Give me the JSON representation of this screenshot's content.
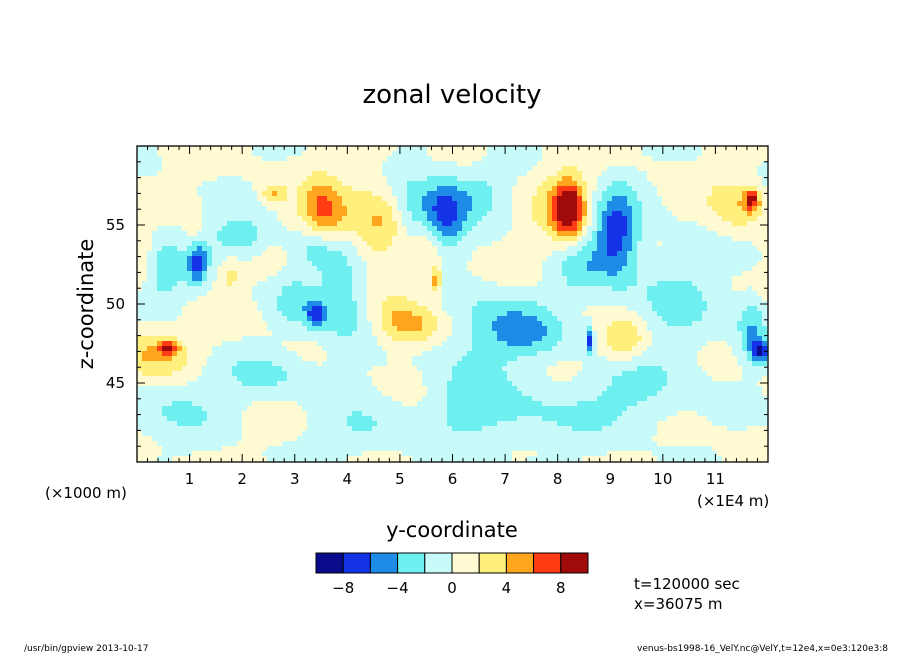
{
  "chart_data": {
    "type": "heatmap",
    "title": "zonal velocity",
    "xlabel": "y-coordinate",
    "ylabel": "z-coordinate",
    "x_scale_note": "(×1E4 m)",
    "y_scale_note": "(×1000 m)",
    "x_ticks": [
      {
        "value": 1,
        "label": "1"
      },
      {
        "value": 2,
        "label": "2"
      },
      {
        "value": 3,
        "label": "3"
      },
      {
        "value": 4,
        "label": "4"
      },
      {
        "value": 5,
        "label": "5"
      },
      {
        "value": 6,
        "label": "6"
      },
      {
        "value": 7,
        "label": "7"
      },
      {
        "value": 8,
        "label": "8"
      },
      {
        "value": 9,
        "label": "9"
      },
      {
        "value": 10,
        "label": "10"
      },
      {
        "value": 11,
        "label": "11"
      }
    ],
    "y_ticks": [
      {
        "value": 45,
        "label": "45"
      },
      {
        "value": 50,
        "label": "50"
      },
      {
        "value": 55,
        "label": "55"
      }
    ],
    "xlim": [
      0,
      12
    ],
    "ylim": [
      40,
      60
    ],
    "colorbar": {
      "levels": [
        -10,
        -8,
        -6,
        -4,
        -2,
        0,
        2,
        4,
        6,
        8,
        10
      ],
      "colors": [
        "#0a0a8c",
        "#1432e6",
        "#1e8ce6",
        "#6ef0f0",
        "#c8fafa",
        "#fffad2",
        "#fff07d",
        "#ffa51e",
        "#ff3c14",
        "#a00a0a"
      ],
      "tick_values": [
        -8,
        -4,
        0,
        4,
        8
      ],
      "tick_labels": [
        "−8",
        "−4",
        "0",
        "4",
        "8"
      ]
    },
    "features": [
      {
        "y": 0.3,
        "z": 46.9,
        "value": 4,
        "sy": 0.5,
        "sz": 1.2
      },
      {
        "y": 0.6,
        "z": 47.2,
        "value": 7,
        "sy": 0.12,
        "sz": 0.3
      },
      {
        "y": 0.5,
        "z": 52.0,
        "value": -3,
        "sy": 0.35,
        "sz": 1.8
      },
      {
        "y": 1.15,
        "z": 52.7,
        "value": -7,
        "sy": 0.13,
        "sz": 1.0
      },
      {
        "y": 1.1,
        "z": 54.0,
        "value": 2,
        "sy": 0.12,
        "sz": 1.2
      },
      {
        "y": 1.95,
        "z": 54.3,
        "value": -4,
        "sy": 0.4,
        "sz": 0.9
      },
      {
        "y": 1.8,
        "z": 51.8,
        "value": 2.5,
        "sy": 0.12,
        "sz": 0.7
      },
      {
        "y": 0.1,
        "z": 53.3,
        "value": 2.5,
        "sy": 0.15,
        "sz": 1.5
      },
      {
        "y": 2.6,
        "z": 57.0,
        "value": 4,
        "sy": 0.15,
        "sz": 0.4
      },
      {
        "y": 3.55,
        "z": 55.7,
        "value": 6.5,
        "sy": 0.3,
        "sz": 1.5
      },
      {
        "y": 3.4,
        "z": 53.6,
        "value": -3.5,
        "sy": 0.3,
        "sz": 1.0
      },
      {
        "y": 4.6,
        "z": 55.3,
        "value": 4,
        "sy": 0.5,
        "sz": 1.8
      },
      {
        "y": 3.9,
        "z": 50.5,
        "value": -4,
        "sy": 0.35,
        "sz": 2.5
      },
      {
        "y": 3.4,
        "z": 49.3,
        "value": -6,
        "sy": 0.12,
        "sz": 0.6
      },
      {
        "y": 3.0,
        "z": 50.0,
        "value": -3,
        "sy": 0.25,
        "sz": 1.2
      },
      {
        "y": 5.2,
        "z": 55.8,
        "value": -4,
        "sy": 0.3,
        "sz": 2.0
      },
      {
        "y": 5.85,
        "z": 55.8,
        "value": -7,
        "sy": 0.3,
        "sz": 1.6
      },
      {
        "y": 6.5,
        "z": 57.0,
        "value": -3,
        "sy": 0.35,
        "sz": 1.0
      },
      {
        "y": 5.5,
        "z": 53.0,
        "value": 3,
        "sy": 0.2,
        "sz": 1.5
      },
      {
        "y": 5.7,
        "z": 51.5,
        "value": 5,
        "sy": 0.07,
        "sz": 0.5
      },
      {
        "y": 5.0,
        "z": 49.0,
        "value": 3.5,
        "sy": 0.35,
        "sz": 1.2
      },
      {
        "y": 5.4,
        "z": 48.6,
        "value": 2.5,
        "sy": 0.4,
        "sz": 0.8
      },
      {
        "y": 6.9,
        "z": 48.8,
        "value": -3.5,
        "sy": 0.7,
        "sz": 1.5
      },
      {
        "y": 7.5,
        "z": 48.0,
        "value": -2.5,
        "sy": 0.5,
        "sz": 1.0
      },
      {
        "y": 8.2,
        "z": 56.0,
        "value": 9,
        "sy": 0.2,
        "sz": 1.2
      },
      {
        "y": 8.1,
        "z": 56.3,
        "value": 3,
        "sy": 0.45,
        "sz": 1.6
      },
      {
        "y": 9.1,
        "z": 54.5,
        "value": -7.5,
        "sy": 0.3,
        "sz": 2.0
      },
      {
        "y": 8.4,
        "z": 52.2,
        "value": -3,
        "sy": 0.3,
        "sz": 1.2
      },
      {
        "y": 9.3,
        "z": 47.7,
        "value": 4.5,
        "sy": 0.3,
        "sz": 1.0
      },
      {
        "y": 8.6,
        "z": 47.8,
        "value": -7,
        "sy": 0.05,
        "sz": 0.6
      },
      {
        "y": 10.2,
        "z": 50.2,
        "value": -2.5,
        "sy": 0.7,
        "sz": 2.5
      },
      {
        "y": 11.4,
        "z": 56.2,
        "value": 3.5,
        "sy": 0.35,
        "sz": 1.2
      },
      {
        "y": 11.7,
        "z": 56.6,
        "value": 7,
        "sy": 0.1,
        "sz": 0.5
      },
      {
        "y": 11.7,
        "z": 48.5,
        "value": -4,
        "sy": 0.2,
        "sz": 1.4
      },
      {
        "y": 11.85,
        "z": 47.0,
        "value": -7,
        "sy": 0.12,
        "sz": 0.5
      },
      {
        "y": 2.5,
        "z": 45.5,
        "value": -2.5,
        "sy": 0.6,
        "sz": 1.0
      },
      {
        "y": 7.3,
        "z": 43.0,
        "value": -2.5,
        "sy": 1.2,
        "sz": 1.5
      },
      {
        "y": 9.5,
        "z": 44.5,
        "value": -2.5,
        "sy": 0.7,
        "sz": 1.5
      },
      {
        "y": 4.3,
        "z": 42.0,
        "value": -2.2,
        "sy": 0.6,
        "sz": 1.2
      },
      {
        "y": 0.7,
        "z": 43.5,
        "value": -2.2,
        "sy": 0.8,
        "sz": 1.5
      },
      {
        "y": 6.3,
        "z": 45.0,
        "value": -2.2,
        "sy": 0.5,
        "sz": 2.0
      }
    ]
  },
  "annotations": {
    "time": "t=120000 sec",
    "xpos": "x=36075 m",
    "footer_left": "/usr/bin/gpview  2013-10-17",
    "footer_right": "venus-bs1998-16_VelY.nc@VelY,t=12e4,x=0e3:120e3:8"
  }
}
